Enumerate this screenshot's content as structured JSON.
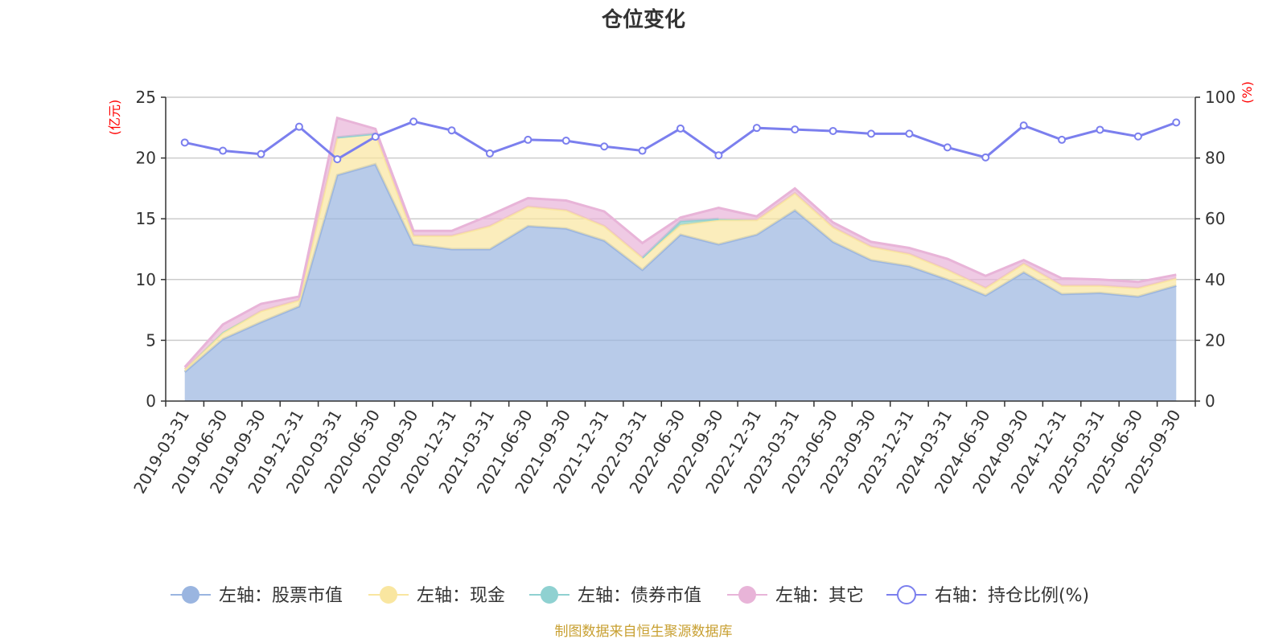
{
  "chart_data": {
    "type": "area",
    "title": "仓位变化",
    "left_axis": {
      "unit": "(亿元)",
      "ylim": [
        0,
        25
      ],
      "ticks": [
        0,
        5,
        10,
        15,
        20,
        25
      ]
    },
    "right_axis": {
      "unit": "(%)",
      "ylim": [
        0,
        100
      ],
      "ticks": [
        0,
        20,
        40,
        60,
        80,
        100
      ]
    },
    "categories": [
      "2019-03-31",
      "2019-06-30",
      "2019-09-30",
      "2019-12-31",
      "2020-03-31",
      "2020-06-30",
      "2020-09-30",
      "2020-12-31",
      "2021-03-31",
      "2021-06-30",
      "2021-09-30",
      "2021-12-31",
      "2022-03-31",
      "2022-06-30",
      "2022-09-30",
      "2022-12-31",
      "2023-03-31",
      "2023-06-30",
      "2023-09-30",
      "2023-12-31",
      "2024-03-31",
      "2024-06-30",
      "2024-09-30",
      "2024-12-31",
      "2025-03-31",
      "2025-06-30",
      "2025-09-30"
    ],
    "stack_series": [
      {
        "name": "左轴：股票市值",
        "color": "#9ab5e0",
        "values": [
          2.4,
          5.1,
          6.5,
          7.8,
          18.6,
          19.5,
          12.9,
          12.5,
          12.5,
          14.4,
          14.2,
          13.2,
          10.8,
          13.7,
          12.9,
          13.7,
          15.7,
          13.1,
          11.6,
          11.1,
          10.0,
          8.7,
          10.6,
          8.8,
          8.9,
          8.6,
          9.5
        ]
      },
      {
        "name": "左轴：现金",
        "color": "#f9e6a0",
        "values": [
          0.2,
          0.5,
          0.9,
          0.5,
          3.1,
          2.5,
          0.7,
          1.1,
          1.9,
          1.6,
          1.5,
          1.2,
          1.0,
          0.8,
          2.0,
          1.2,
          1.4,
          1.2,
          1.1,
          1.0,
          0.8,
          0.6,
          0.7,
          0.7,
          0.6,
          0.7,
          0.6
        ]
      },
      {
        "name": "左轴：债券市值",
        "color": "#8fd1d1",
        "values": [
          null,
          0.1,
          null,
          null,
          0.0,
          0.0,
          null,
          null,
          null,
          null,
          null,
          null,
          0.0,
          0.3,
          0.1,
          null,
          null,
          null,
          null,
          null,
          null,
          null,
          null,
          null,
          null,
          null,
          null
        ]
      },
      {
        "name": "左轴：其它",
        "color": "#e8b4d8",
        "values": [
          0.2,
          0.6,
          0.6,
          0.3,
          1.6,
          0.4,
          0.4,
          0.4,
          0.9,
          0.7,
          0.8,
          1.2,
          1.2,
          0.3,
          0.9,
          0.3,
          0.4,
          0.4,
          0.4,
          0.5,
          0.9,
          1.0,
          0.3,
          0.6,
          0.5,
          0.5,
          0.3
        ]
      }
    ],
    "line_series": {
      "name": "右轴：持仓比例(%)",
      "color": "#7b7fee",
      "values": [
        85.1,
        82.4,
        81.3,
        90.3,
        79.6,
        87.0,
        92.0,
        89.1,
        81.5,
        86.0,
        85.7,
        83.8,
        82.4,
        89.7,
        80.9,
        89.9,
        89.4,
        88.9,
        88.0,
        88.0,
        83.5,
        80.2,
        90.7,
        86.0,
        89.3,
        87.1,
        91.7
      ]
    },
    "legend_position": "bottom"
  },
  "footer": {
    "source": "制图数据来自恒生聚源数据库"
  }
}
